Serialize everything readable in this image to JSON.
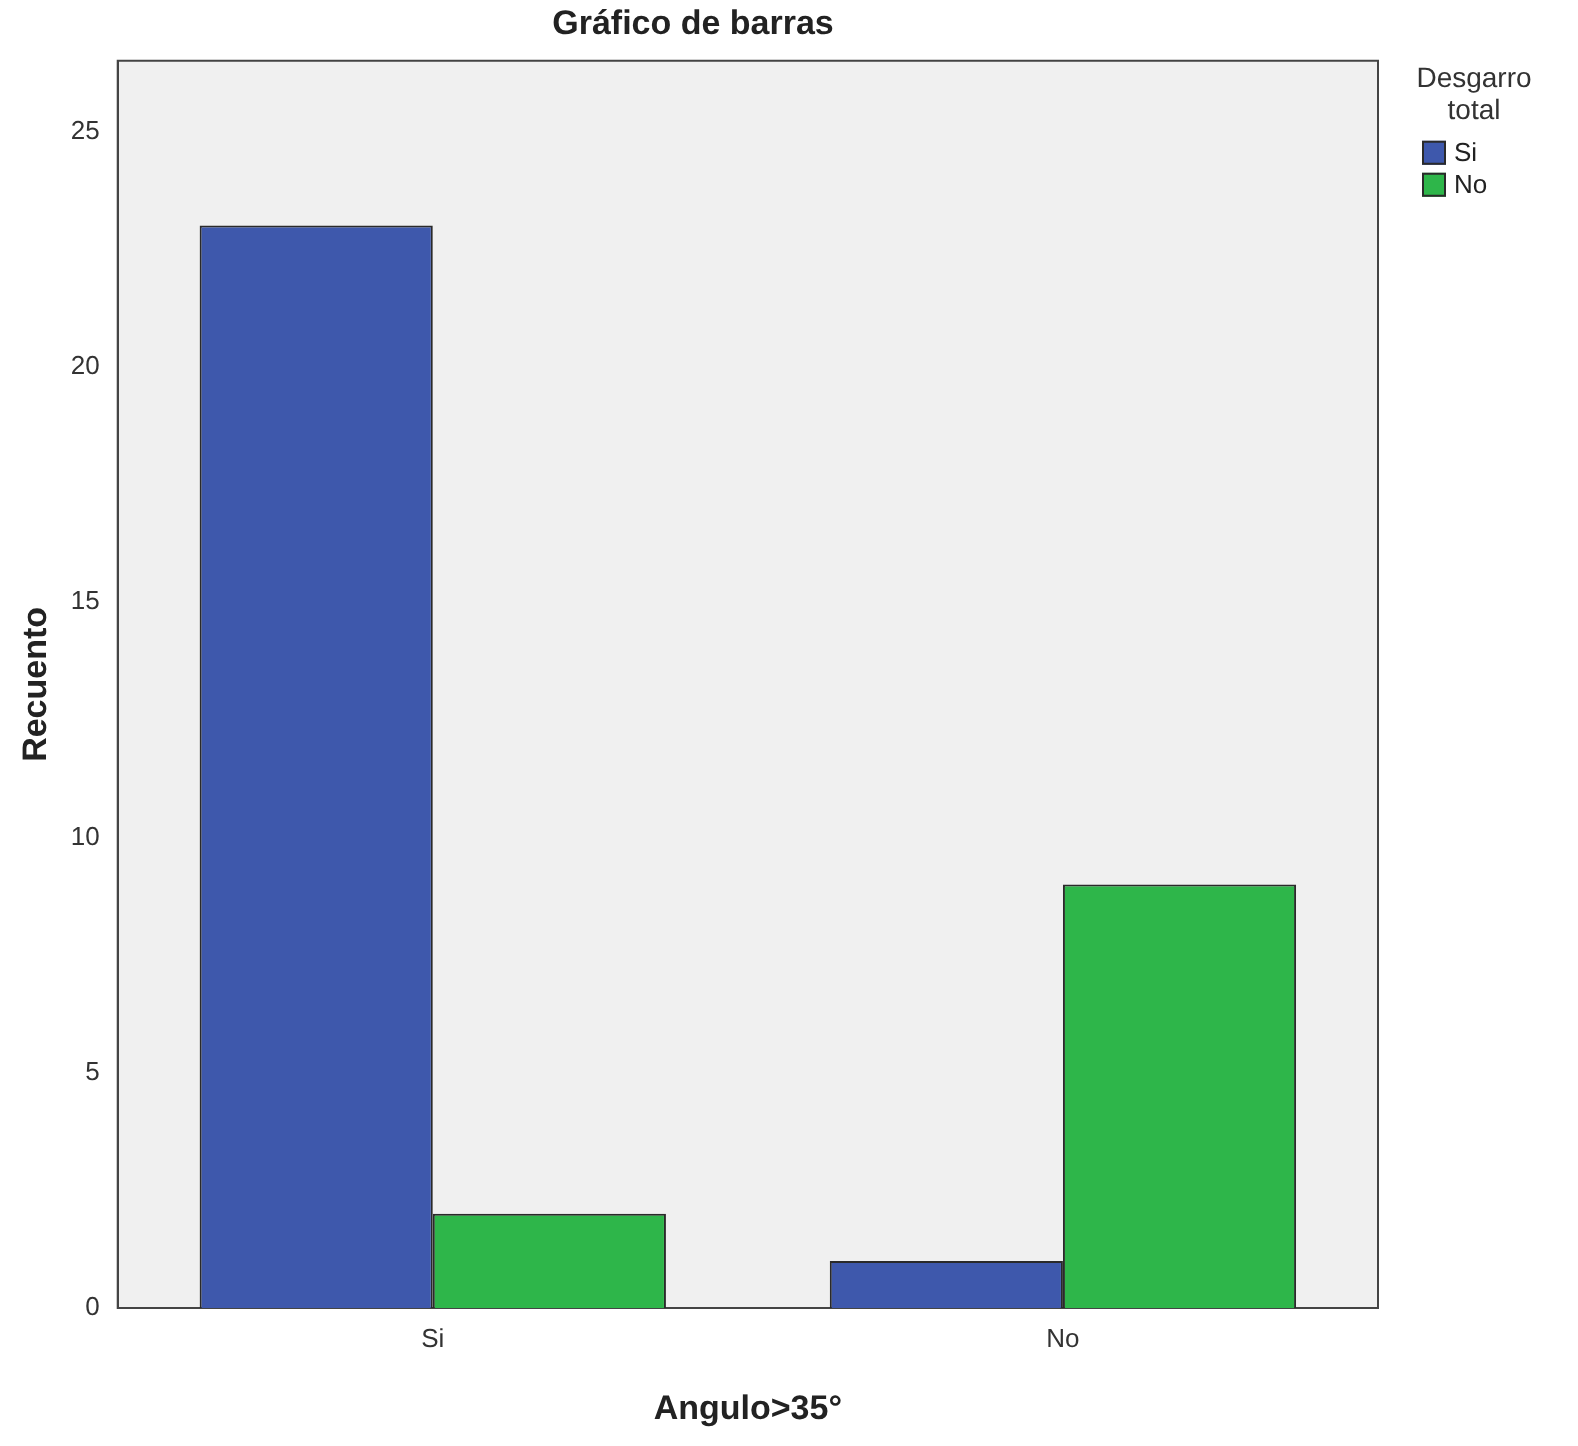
{
  "chart_data": {
    "type": "bar",
    "title": "Gráfico de barras",
    "xlabel": "Angulo>35°",
    "ylabel": "Recuento",
    "legend_title": "Desgarro total",
    "categories": [
      "Si",
      "No"
    ],
    "series": [
      {
        "name": "Si",
        "color": "#3e58ac",
        "values": [
          23,
          1
        ]
      },
      {
        "name": "No",
        "color": "#2eb64a",
        "values": [
          2,
          9
        ]
      }
    ],
    "ylim": [
      0,
      26.5
    ],
    "yticks": [
      0,
      5,
      10,
      15,
      20,
      25
    ],
    "grid": false,
    "legend": "top right"
  }
}
